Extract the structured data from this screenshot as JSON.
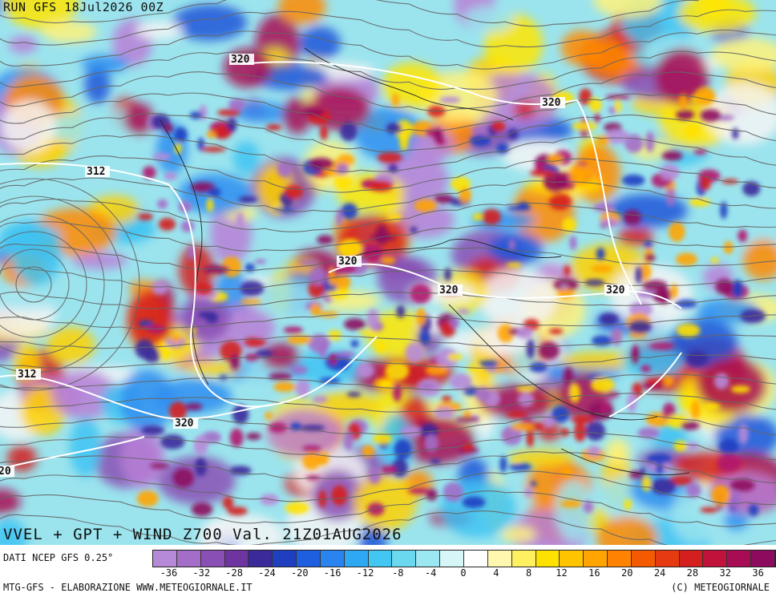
{
  "header": {
    "run_label": "RUN GFS 18Jul2026 00Z"
  },
  "map": {
    "title": "VVEL + GPT + WIND Z700 Val. 21Z01AUG2026",
    "contour_labels": [
      "320",
      "320",
      "312",
      "320",
      "320",
      "320",
      "312",
      "320",
      "20"
    ],
    "legend_colors": [
      "#b78ad8",
      "#a36dc8",
      "#8a4fb4",
      "#6e34a0",
      "#3a2a9a",
      "#1f3fc0",
      "#1e5fe0",
      "#2a84f0",
      "#2fa8f4",
      "#42c6f2",
      "#6ad9f0",
      "#9ce8f2",
      "#d6f6f8",
      "#ffffff",
      "#fff7b0",
      "#fff060",
      "#ffe100",
      "#ffc400",
      "#ffa400",
      "#ff8200",
      "#f45a00",
      "#e63a10",
      "#d41f1f",
      "#c0123a",
      "#a80c54",
      "#8d0b5e"
    ]
  },
  "legend": {
    "source": "DATI NCEP GFS 0.25°",
    "ticks": [
      "-36",
      "-32",
      "-28",
      "-24",
      "-20",
      "-16",
      "-12",
      "-8",
      "-4",
      "0",
      "4",
      "8",
      "12",
      "16",
      "20",
      "24",
      "28",
      "32",
      "36"
    ]
  },
  "footer": {
    "left": "MTG-GFS - ELABORAZIONE WWW.METEOGIORNALE.IT",
    "right": "(C) METEOGIORNALE"
  }
}
